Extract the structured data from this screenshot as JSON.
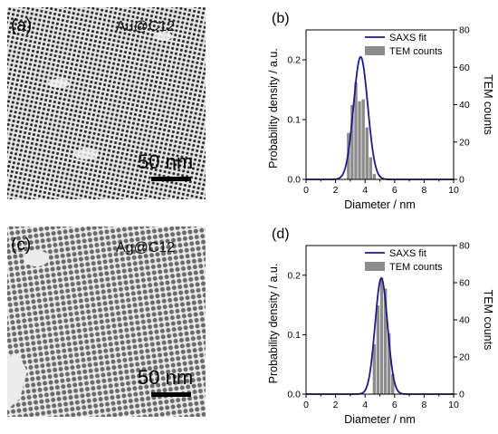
{
  "tem_panels": [
    {
      "panel_label": "(a)",
      "sample_label": "Au@C12",
      "scale_bar_label": "50 nm"
    },
    {
      "panel_label": "(c)",
      "sample_label": "Ag@C12",
      "scale_bar_label": "50 nm"
    }
  ],
  "chart_data": [
    {
      "type": "bar",
      "panel_label": "(b)",
      "xlabel": "Diameter / nm",
      "ylabel": "Probability density / a.u.",
      "y2label": "TEM counts",
      "xlim": [
        0,
        10
      ],
      "ylim": [
        0,
        0.25
      ],
      "y2lim": [
        0,
        80
      ],
      "xticks": [
        "0",
        "2",
        "4",
        "6",
        "8",
        "10"
      ],
      "yticks": [
        "0.0",
        "0.1",
        "0.2"
      ],
      "y2ticks": [
        "0",
        "20",
        "40",
        "60",
        "80"
      ],
      "legend_position": "top-right",
      "series": [
        {
          "name": "SAXS fit",
          "kind": "line",
          "color": "#1b1b8c",
          "axis": "left",
          "peak_x": 3.7,
          "peak_y": 0.205,
          "sigma": 0.48
        },
        {
          "name": "TEM counts",
          "kind": "histogram",
          "color": "#8c8c8c",
          "axis": "right",
          "bin_width": 0.25,
          "bins_x": [
            2.75,
            3.0,
            3.25,
            3.5,
            3.75,
            4.0,
            4.25,
            4.5
          ],
          "counts": [
            25,
            40,
            52,
            42,
            43,
            28,
            12,
            3
          ]
        }
      ]
    },
    {
      "type": "bar",
      "panel_label": "(d)",
      "xlabel": "Diameter / nm",
      "ylabel": "Probability density / a.u.",
      "y2label": "TEM counts",
      "xlim": [
        0,
        10
      ],
      "ylim": [
        0,
        0.25
      ],
      "y2lim": [
        0,
        80
      ],
      "xticks": [
        "0",
        "2",
        "4",
        "6",
        "8",
        "10"
      ],
      "yticks": [
        "0.0",
        "0.1",
        "0.2"
      ],
      "y2ticks": [
        "0",
        "20",
        "40",
        "60",
        "80"
      ],
      "legend_position": "top-right",
      "series": [
        {
          "name": "SAXS fit",
          "kind": "line",
          "color": "#1b1b8c",
          "axis": "left",
          "peak_x": 5.1,
          "peak_y": 0.195,
          "sigma": 0.42
        },
        {
          "name": "TEM counts",
          "kind": "histogram",
          "color": "#8c8c8c",
          "axis": "right",
          "bin_width": 0.25,
          "bins_x": [
            4.5,
            4.75,
            5.0,
            5.25,
            5.5,
            5.75
          ],
          "counts": [
            27,
            48,
            63,
            57,
            33,
            11
          ]
        }
      ]
    }
  ]
}
